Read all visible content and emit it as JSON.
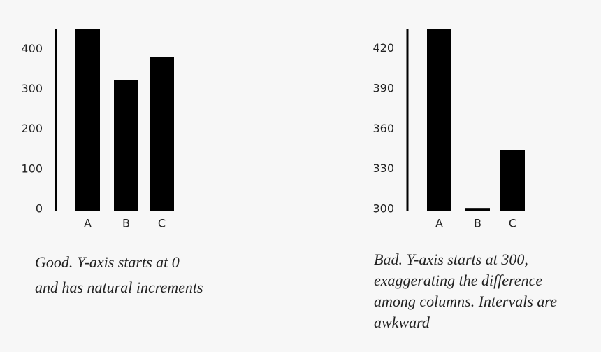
{
  "chart_data": [
    {
      "type": "bar",
      "categories": [
        "A",
        "B",
        "C"
      ],
      "values": [
        455,
        326,
        384
      ],
      "color": "#000000",
      "ylim": [
        0,
        455
      ],
      "yticks": [
        0,
        100,
        200,
        300,
        400
      ],
      "annotations": [
        "Good. Y-axis starts at 0",
        "and has natural increments"
      ],
      "annotation_color": "#2f8f4e"
    },
    {
      "type": "bar",
      "categories": [
        "A",
        "B",
        "C"
      ],
      "values": [
        436,
        302,
        345
      ],
      "color": "#000000",
      "ylim": [
        300,
        436
      ],
      "yticks": [
        300,
        330,
        360,
        390,
        420
      ],
      "annotations": [
        "Bad. Y-axis starts at 300,",
        "exaggerating the difference",
        "among columns. Intervals are",
        "awkward"
      ],
      "annotation_color": "#e0575b"
    }
  ]
}
